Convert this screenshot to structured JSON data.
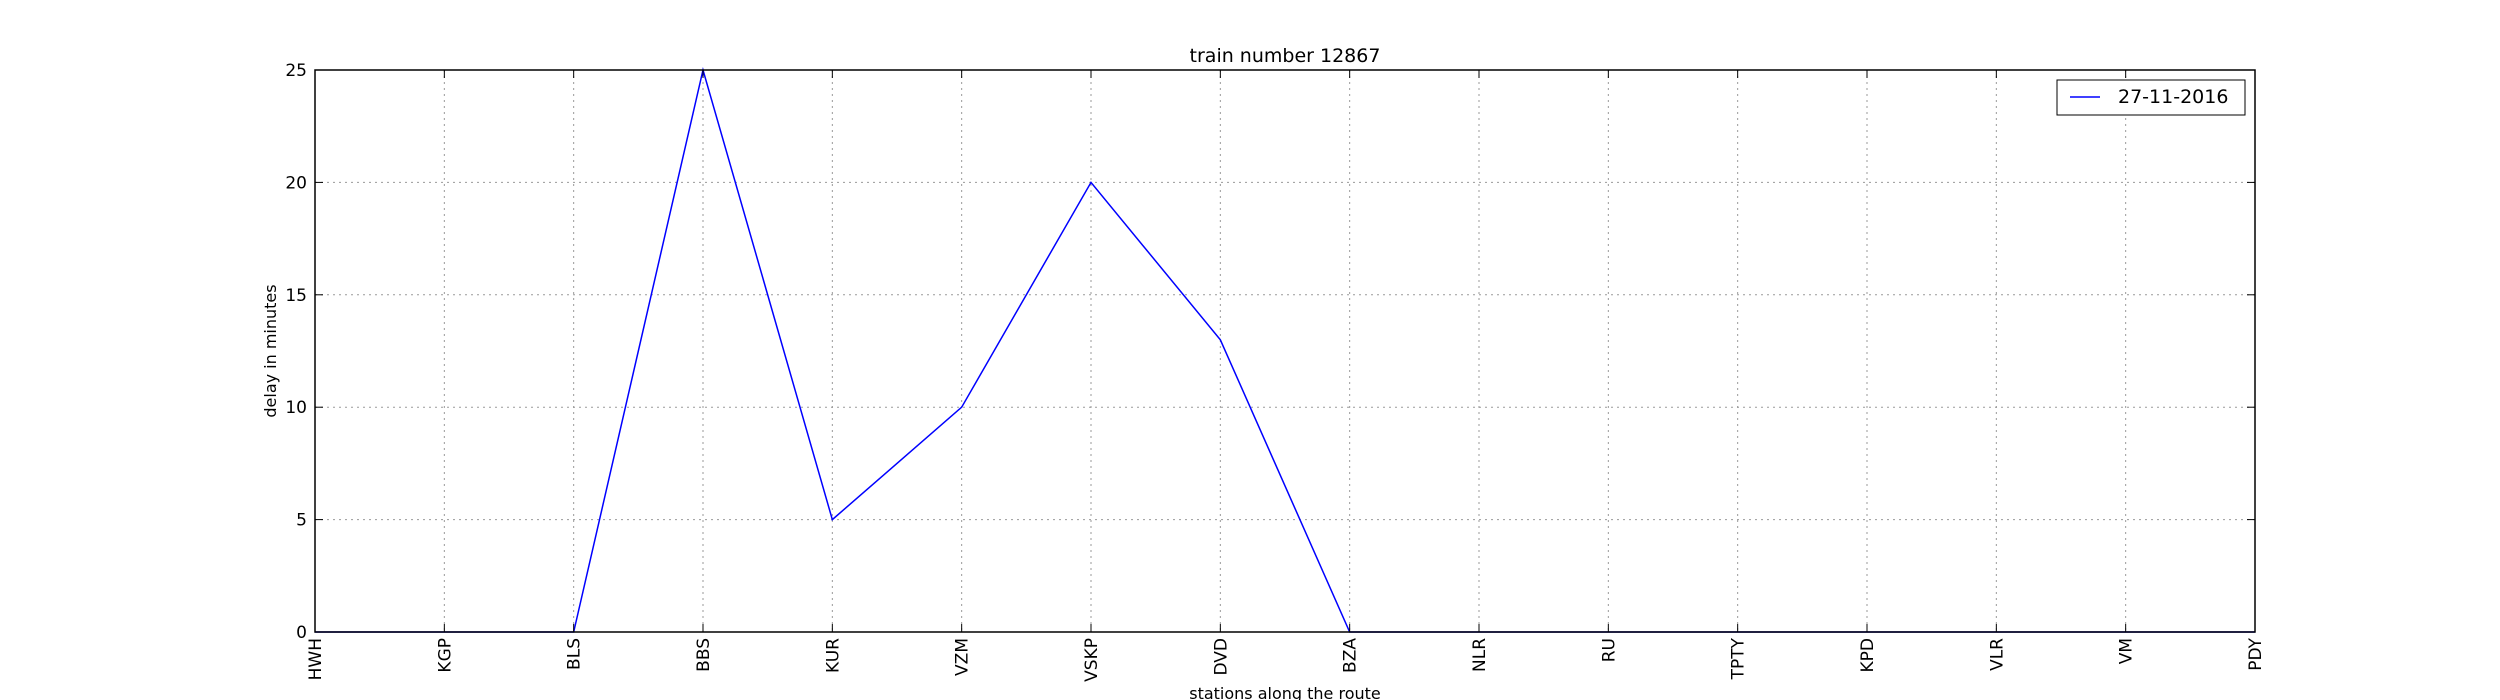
{
  "chart_data": {
    "type": "line",
    "title": "train number 12867",
    "xlabel": "stations along the route",
    "ylabel": "delay in minutes",
    "categories": [
      "HWH",
      "KGP",
      "BLS",
      "BBS",
      "KUR",
      "VZM",
      "VSKP",
      "DVD",
      "BZA",
      "NLR",
      "RU",
      "TPTY",
      "KPD",
      "VLR",
      "VM",
      "PDY"
    ],
    "series": [
      {
        "name": "27-11-2016",
        "color": "#0000ff",
        "values": [
          0,
          0,
          0,
          25,
          5,
          10,
          20,
          13,
          0,
          0,
          0,
          0,
          0,
          0,
          0,
          0
        ]
      }
    ],
    "ylim": [
      0,
      25
    ],
    "yticks": [
      0,
      5,
      10,
      15,
      20,
      25
    ],
    "grid": true,
    "legend": "top-right"
  }
}
